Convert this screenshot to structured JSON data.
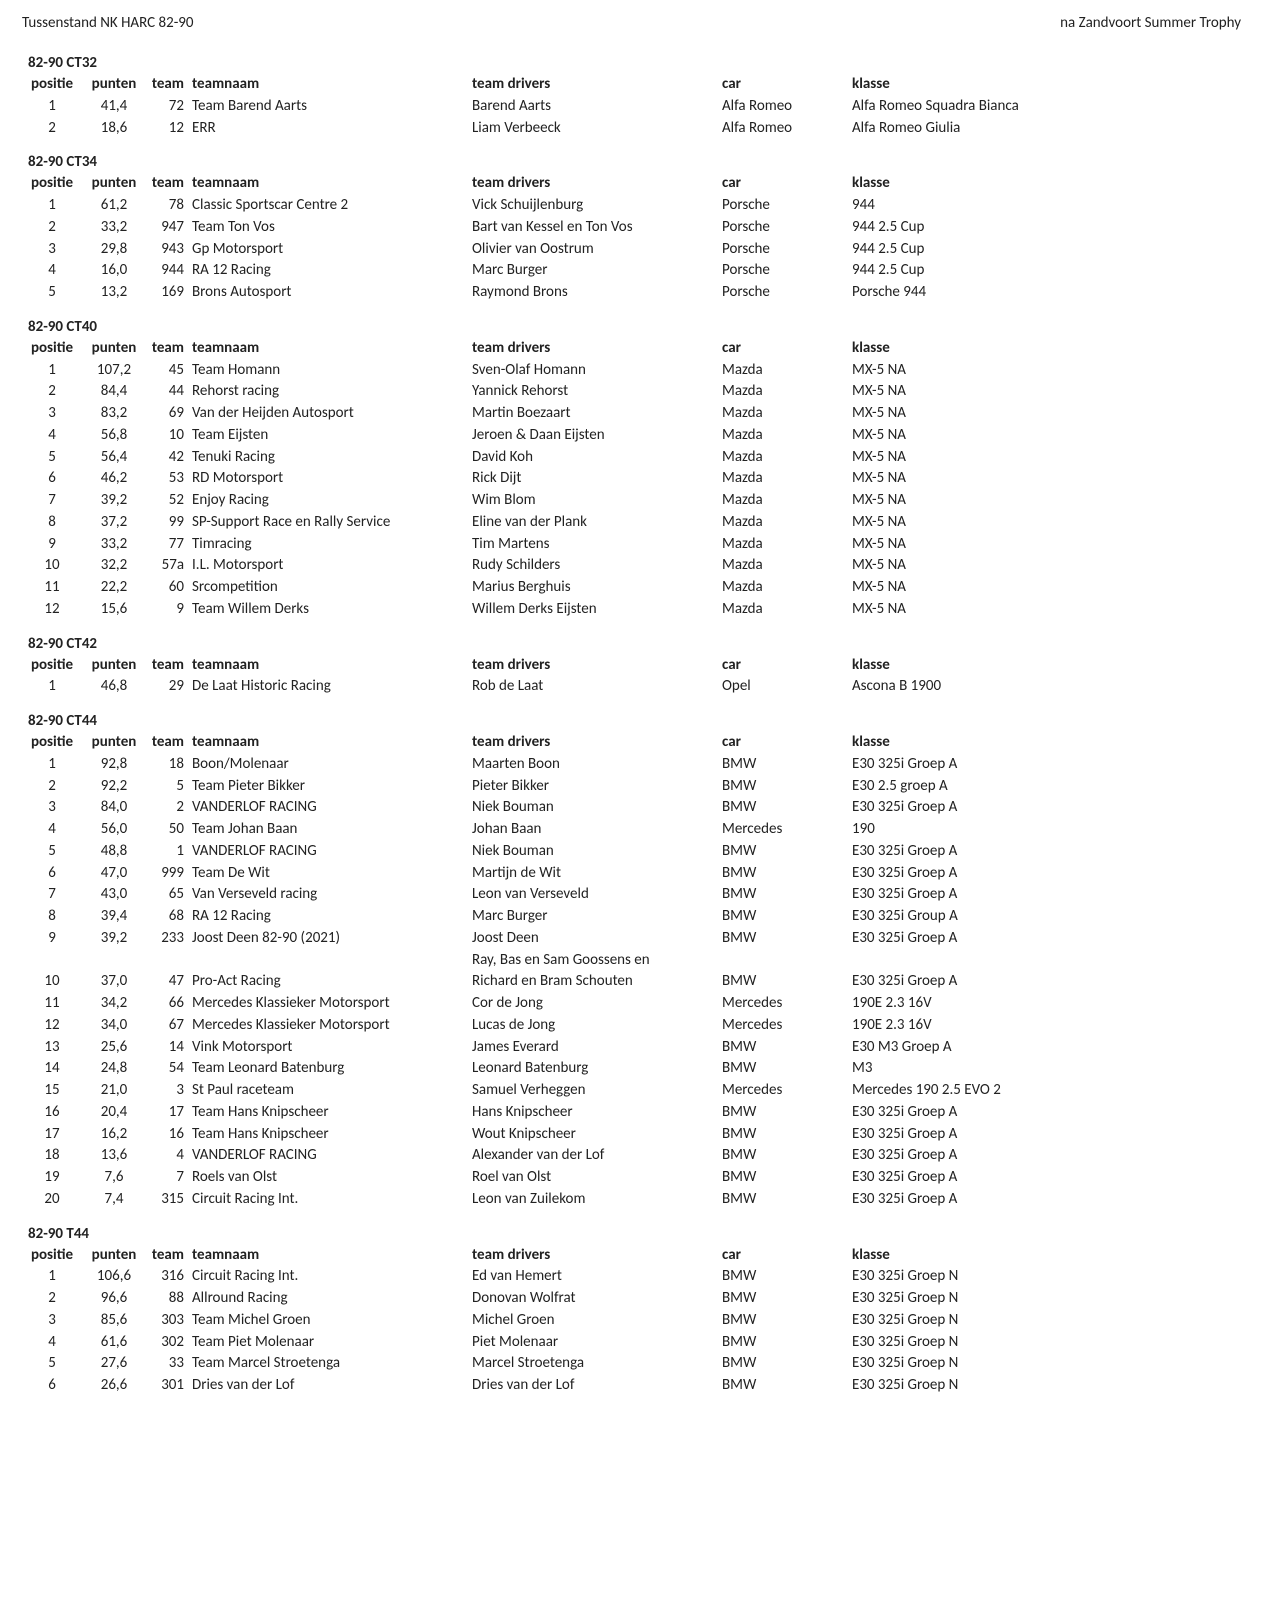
{
  "page": {
    "title_left": "Tussenstand NK HARC 82-90",
    "title_right": "na Zandvoort Summer Trophy"
  },
  "columns": {
    "positie": "positie",
    "punten": "punten",
    "team": "team",
    "teamnaam": "teamnaam",
    "drivers": "team drivers",
    "car": "car",
    "klasse": "klasse"
  },
  "groups": [
    {
      "title": "82-90 CT32",
      "rows": [
        {
          "positie": "1",
          "punten": "41,4",
          "team": "72",
          "teamnaam": "Team Barend Aarts",
          "drivers": "Barend Aarts",
          "car": "Alfa Romeo",
          "klasse": "Alfa Romeo Squadra Bianca"
        },
        {
          "positie": "2",
          "punten": "18,6",
          "team": "12",
          "teamnaam": "ERR",
          "drivers": "Liam Verbeeck",
          "car": "Alfa Romeo",
          "klasse": "Alfa Romeo Giulia"
        }
      ]
    },
    {
      "title": "82-90 CT34",
      "rows": [
        {
          "positie": "1",
          "punten": "61,2",
          "team": "78",
          "teamnaam": "Classic Sportscar Centre 2",
          "drivers": "Vick Schuijlenburg",
          "car": "Porsche",
          "klasse": "944"
        },
        {
          "positie": "2",
          "punten": "33,2",
          "team": "947",
          "teamnaam": "Team Ton Vos",
          "drivers": "Bart van Kessel en Ton Vos",
          "car": "Porsche",
          "klasse": "944 2.5 Cup"
        },
        {
          "positie": "3",
          "punten": "29,8",
          "team": "943",
          "teamnaam": "Gp Motorsport",
          "drivers": "Olivier van Oostrum",
          "car": "Porsche",
          "klasse": "944 2.5 Cup"
        },
        {
          "positie": "4",
          "punten": "16,0",
          "team": "944",
          "teamnaam": "RA 12 Racing",
          "drivers": "Marc Burger",
          "car": "Porsche",
          "klasse": "944 2.5 Cup"
        },
        {
          "positie": "5",
          "punten": "13,2",
          "team": "169",
          "teamnaam": "Brons Autosport",
          "drivers": "Raymond Brons",
          "car": "Porsche",
          "klasse": "Porsche 944"
        }
      ]
    },
    {
      "title": "82-90 CT40",
      "rows": [
        {
          "positie": "1",
          "punten": "107,2",
          "team": "45",
          "teamnaam": "Team Homann",
          "drivers": "Sven-Olaf Homann",
          "car": "Mazda",
          "klasse": "MX-5 NA"
        },
        {
          "positie": "2",
          "punten": "84,4",
          "team": "44",
          "teamnaam": "Rehorst racing",
          "drivers": "Yannick Rehorst",
          "car": "Mazda",
          "klasse": "MX-5 NA"
        },
        {
          "positie": "3",
          "punten": "83,2",
          "team": "69",
          "teamnaam": "Van der Heijden Autosport",
          "drivers": "Martin Boezaart",
          "car": "Mazda",
          "klasse": "MX-5 NA"
        },
        {
          "positie": "4",
          "punten": "56,8",
          "team": "10",
          "teamnaam": "Team Eijsten",
          "drivers": "Jeroen & Daan Eijsten",
          "car": "Mazda",
          "klasse": "MX-5 NA"
        },
        {
          "positie": "5",
          "punten": "56,4",
          "team": "42",
          "teamnaam": "Tenuki Racing",
          "drivers": "David Koh",
          "car": "Mazda",
          "klasse": "MX-5 NA"
        },
        {
          "positie": "6",
          "punten": "46,2",
          "team": "53",
          "teamnaam": "RD Motorsport",
          "drivers": "Rick Dijt",
          "car": "Mazda",
          "klasse": "MX-5 NA"
        },
        {
          "positie": "7",
          "punten": "39,2",
          "team": "52",
          "teamnaam": "Enjoy Racing",
          "drivers": "Wim Blom",
          "car": "Mazda",
          "klasse": "MX-5 NA"
        },
        {
          "positie": "8",
          "punten": "37,2",
          "team": "99",
          "teamnaam": "SP-Support Race en Rally Service",
          "drivers": "Eline van der Plank",
          "car": "Mazda",
          "klasse": "MX-5 NA"
        },
        {
          "positie": "9",
          "punten": "33,2",
          "team": "77",
          "teamnaam": "Timracing",
          "drivers": "Tim Martens",
          "car": "Mazda",
          "klasse": "MX-5 NA"
        },
        {
          "positie": "10",
          "punten": "32,2",
          "team": "57a",
          "teamnaam": "I.L. Motorsport",
          "drivers": "Rudy Schilders",
          "car": "Mazda",
          "klasse": "MX-5 NA"
        },
        {
          "positie": "11",
          "punten": "22,2",
          "team": "60",
          "teamnaam": "Srcompetition",
          "drivers": "Marius Berghuis",
          "car": "Mazda",
          "klasse": "MX-5 NA"
        },
        {
          "positie": "12",
          "punten": "15,6",
          "team": "9",
          "teamnaam": "Team Willem Derks",
          "drivers": "Willem Derks Eijsten",
          "car": "Mazda",
          "klasse": "MX-5 NA"
        }
      ]
    },
    {
      "title": "82-90 CT42",
      "rows": [
        {
          "positie": "1",
          "punten": "46,8",
          "team": "29",
          "teamnaam": "De Laat Historic Racing",
          "drivers": "Rob de Laat",
          "car": "Opel",
          "klasse": "Ascona B 1900"
        }
      ]
    },
    {
      "title": "82-90 CT44",
      "rows": [
        {
          "positie": "1",
          "punten": "92,8",
          "team": "18",
          "teamnaam": "Boon/Molenaar",
          "drivers": "Maarten Boon",
          "car": "BMW",
          "klasse": "E30 325i Groep A"
        },
        {
          "positie": "2",
          "punten": "92,2",
          "team": "5",
          "teamnaam": "Team Pieter Bikker",
          "drivers": "Pieter Bikker",
          "car": "BMW",
          "klasse": "E30 2.5 groep A"
        },
        {
          "positie": "3",
          "punten": "84,0",
          "team": "2",
          "teamnaam": "VANDERLOF RACING",
          "drivers": "Niek Bouman",
          "car": "BMW",
          "klasse": "E30 325i Groep A"
        },
        {
          "positie": "4",
          "punten": "56,0",
          "team": "50",
          "teamnaam": "Team Johan Baan",
          "drivers": "Johan Baan",
          "car": "Mercedes",
          "klasse": "190"
        },
        {
          "positie": "5",
          "punten": "48,8",
          "team": "1",
          "teamnaam": "VANDERLOF RACING",
          "drivers": "Niek Bouman",
          "car": "BMW",
          "klasse": "E30 325i Groep A"
        },
        {
          "positie": "6",
          "punten": "47,0",
          "team": "999",
          "teamnaam": "Team De Wit",
          "drivers": "Martijn de Wit",
          "car": "BMW",
          "klasse": "E30 325i Groep A"
        },
        {
          "positie": "7",
          "punten": "43,0",
          "team": "65",
          "teamnaam": "Van Verseveld racing",
          "drivers": "Leon van Verseveld",
          "car": "BMW",
          "klasse": "E30 325i Groep A"
        },
        {
          "positie": "8",
          "punten": "39,4",
          "team": "68",
          "teamnaam": "RA 12 Racing",
          "drivers": "Marc Burger",
          "car": "BMW",
          "klasse": "E30 325i Group A"
        },
        {
          "positie": "9",
          "punten": "39,2",
          "team": "233",
          "teamnaam": "Joost Deen 82-90 (2021)",
          "drivers": "Joost Deen",
          "car": "BMW",
          "klasse": "E30 325i Groep A",
          "extra_drivers": [
            "Ray, Bas en Sam Goossens en"
          ]
        },
        {
          "positie": "10",
          "punten": "37,0",
          "team": "47",
          "teamnaam": "Pro-Act Racing",
          "drivers": "Richard en Bram Schouten",
          "car": "BMW",
          "klasse": "E30 325i Groep A"
        },
        {
          "positie": "11",
          "punten": "34,2",
          "team": "66",
          "teamnaam": "Mercedes Klassieker Motorsport",
          "drivers": "Cor de Jong",
          "car": "Mercedes",
          "klasse": "190E 2.3 16V"
        },
        {
          "positie": "12",
          "punten": "34,0",
          "team": "67",
          "teamnaam": "Mercedes Klassieker Motorsport",
          "drivers": "Lucas de Jong",
          "car": "Mercedes",
          "klasse": "190E 2.3 16V"
        },
        {
          "positie": "13",
          "punten": "25,6",
          "team": "14",
          "teamnaam": "Vink Motorsport",
          "drivers": "James Everard",
          "car": "BMW",
          "klasse": "E30 M3 Groep A"
        },
        {
          "positie": "14",
          "punten": "24,8",
          "team": "54",
          "teamnaam": "Team Leonard Batenburg",
          "drivers": "Leonard Batenburg",
          "car": "BMW",
          "klasse": "M3"
        },
        {
          "positie": "15",
          "punten": "21,0",
          "team": "3",
          "teamnaam": "St Paul raceteam",
          "drivers": "Samuel Verheggen",
          "car": "Mercedes",
          "klasse": "Mercedes 190 2.5 EVO 2"
        },
        {
          "positie": "16",
          "punten": "20,4",
          "team": "17",
          "teamnaam": "Team Hans Knipscheer",
          "drivers": "Hans Knipscheer",
          "car": "BMW",
          "klasse": "E30 325i Groep A"
        },
        {
          "positie": "17",
          "punten": "16,2",
          "team": "16",
          "teamnaam": "Team Hans Knipscheer",
          "drivers": "Wout Knipscheer",
          "car": "BMW",
          "klasse": "E30 325i Groep A"
        },
        {
          "positie": "18",
          "punten": "13,6",
          "team": "4",
          "teamnaam": "VANDERLOF RACING",
          "drivers": "Alexander van der Lof",
          "car": "BMW",
          "klasse": "E30 325i Groep A"
        },
        {
          "positie": "19",
          "punten": "7,6",
          "team": "7",
          "teamnaam": "Roels van Olst",
          "drivers": "Roel van Olst",
          "car": "BMW",
          "klasse": "E30 325i Groep A"
        },
        {
          "positie": "20",
          "punten": "7,4",
          "team": "315",
          "teamnaam": "Circuit Racing Int.",
          "drivers": "Leon van Zuilekom",
          "car": "BMW",
          "klasse": "E30 325i Groep A"
        }
      ]
    },
    {
      "title": "82-90 T44",
      "rows": [
        {
          "positie": "1",
          "punten": "106,6",
          "team": "316",
          "teamnaam": "Circuit Racing Int.",
          "drivers": "Ed van Hemert",
          "car": "BMW",
          "klasse": "E30 325i Groep N"
        },
        {
          "positie": "2",
          "punten": "96,6",
          "team": "88",
          "teamnaam": "Allround Racing",
          "drivers": "Donovan Wolfrat",
          "car": "BMW",
          "klasse": "E30 325i Groep N"
        },
        {
          "positie": "3",
          "punten": "85,6",
          "team": "303",
          "teamnaam": "Team Michel Groen",
          "drivers": "Michel Groen",
          "car": "BMW",
          "klasse": "E30 325i Groep N"
        },
        {
          "positie": "4",
          "punten": "61,6",
          "team": "302",
          "teamnaam": "Team Piet Molenaar",
          "drivers": "Piet Molenaar",
          "car": "BMW",
          "klasse": "E30 325i Groep N"
        },
        {
          "positie": "5",
          "punten": "27,6",
          "team": "33",
          "teamnaam": "Team Marcel Stroetenga",
          "drivers": "Marcel Stroetenga",
          "car": "BMW",
          "klasse": "E30 325i Groep N"
        },
        {
          "positie": "6",
          "punten": "26,6",
          "team": "301",
          "teamnaam": "Dries van der Lof",
          "drivers": "Dries van der Lof",
          "car": "BMW",
          "klasse": "E30 325i Groep N"
        }
      ]
    }
  ]
}
